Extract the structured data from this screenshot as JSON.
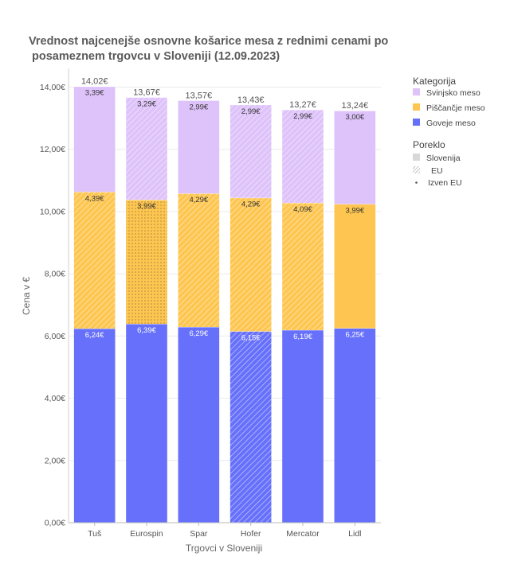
{
  "chart_data": {
    "type": "bar",
    "stacked": true,
    "title_lines": [
      "Vrednost najcenejše osnovne košarice mesa z rednimi cenami po",
      " posameznem trgovcu v Sloveniji (12.09.2023)"
    ],
    "xlabel": "Trgovci v Sloveniji",
    "ylabel": "Cena v €",
    "ylim": [
      0,
      14
    ],
    "yticks": [
      0,
      2,
      4,
      6,
      8,
      10,
      12,
      14
    ],
    "ytick_labels": [
      "0,00€",
      "2,00€",
      "4,00€",
      "6,00€",
      "8,00€",
      "10,00€",
      "12,00€",
      "14,00€"
    ],
    "grid": true,
    "categories": [
      "Tuš",
      "Eurospin",
      "Spar",
      "Hofer",
      "Mercator",
      "Lidl"
    ],
    "totals": [
      "14,02€",
      "13,67€",
      "13,57€",
      "13,43€",
      "13,27€",
      "13,24€"
    ],
    "series": [
      {
        "name": "Goveje meso",
        "color": "#6670fa",
        "values": [
          6.24,
          6.39,
          6.29,
          6.15,
          6.19,
          6.25
        ],
        "labels": [
          "6,24€",
          "6,39€",
          "6,29€",
          "6,15€",
          "6,19€",
          "6,25€"
        ],
        "origin": [
          "Slovenija",
          "Slovenija",
          "Slovenija",
          "EU",
          "Slovenija",
          "Slovenija"
        ]
      },
      {
        "name": "Piščančje meso",
        "color": "#fec650",
        "values": [
          4.39,
          3.99,
          4.29,
          4.29,
          4.09,
          3.99
        ],
        "labels": [
          "4,39€",
          "3,99€",
          "4,29€",
          "4,29€",
          "4,09€",
          "3,99€"
        ],
        "origin": [
          "EU",
          "Izven EU",
          "EU",
          "EU",
          "EU",
          "Slovenija"
        ]
      },
      {
        "name": "Svinjsko meso",
        "color": "#dec2fa",
        "values": [
          3.39,
          3.29,
          2.99,
          2.99,
          2.99,
          3.0
        ],
        "labels": [
          "3,39€",
          "3,29€",
          "2,99€",
          "2,99€",
          "2,99€",
          "3,00€"
        ],
        "origin": [
          "Slovenija",
          "EU",
          "Slovenija",
          "EU",
          "EU",
          "Slovenija"
        ]
      }
    ],
    "legend": {
      "placement": "right",
      "category_title": "Kategorija",
      "category_items": [
        "Svinjsko meso",
        "Piščančje meso",
        "Goveje meso"
      ],
      "origin_title": "Poreklo",
      "origin_items": [
        "Slovenija",
        "EU",
        "Izven EU"
      ]
    }
  }
}
